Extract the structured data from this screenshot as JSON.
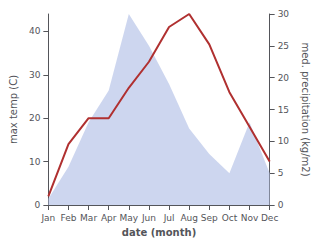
{
  "chart_data": {
    "type": "line",
    "categories": [
      "Jan",
      "Feb",
      "Mar",
      "Apr",
      "May",
      "Jun",
      "Jul",
      "Aug",
      "Sep",
      "Oct",
      "Nov",
      "Dec"
    ],
    "series": [
      {
        "type": "area",
        "color": "#b8c4e8",
        "axis": "y2",
        "values": [
          1,
          6,
          13,
          18,
          30,
          25,
          19,
          12,
          8,
          5,
          13,
          5
        ]
      },
      {
        "type": "line",
        "color": "#b03030",
        "values": [
          2,
          14,
          20,
          20,
          27,
          33,
          41,
          44,
          37,
          26,
          18,
          10
        ]
      }
    ],
    "xlabel": "date (month)",
    "ylabel": "max temp (C)",
    "y2label": "med. precipitation (kg/m2)",
    "ylim": [
      0,
      44
    ],
    "yticks": [
      0,
      10,
      20,
      30,
      40
    ],
    "y2lim": [
      0,
      30
    ],
    "y2ticks": [
      0,
      5,
      10,
      15,
      20,
      25,
      30
    ],
    "grid": false
  }
}
